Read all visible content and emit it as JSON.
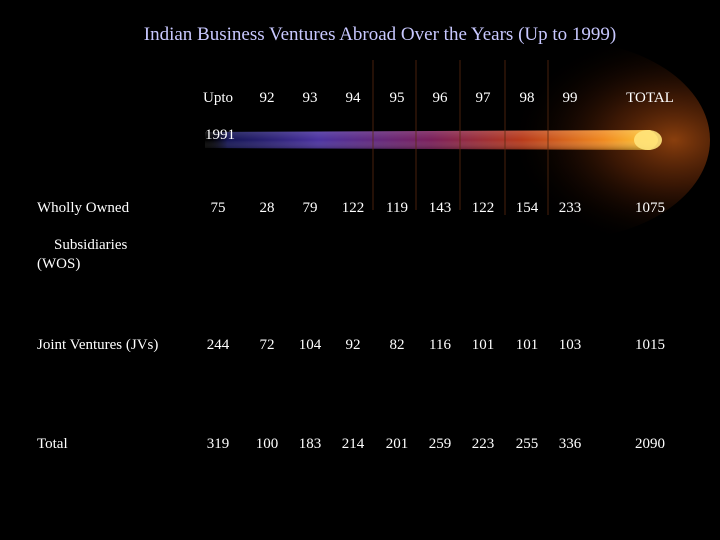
{
  "slide": {
    "title": "Indian Business Ventures Abroad Over the Years (Up to 1999)"
  },
  "table": {
    "header_first_line": "Upto",
    "header_first_line2": "1991",
    "columns": [
      "92",
      "93",
      "94",
      "95",
      "96",
      "97",
      "98",
      "99"
    ],
    "total_label": "TOTAL",
    "rows": [
      {
        "label_line1": "Wholly Owned",
        "label_line2": "Subsidiaries",
        "label_line3": "(WOS)",
        "values": [
          "75",
          "28",
          "79",
          "122",
          "119",
          "143",
          "122",
          "154",
          "233",
          "1075"
        ]
      },
      {
        "label_line1": "Joint Ventures (JVs)",
        "values": [
          "244",
          "72",
          "104",
          "92",
          "82",
          "116",
          "101",
          "101",
          "103",
          "1015"
        ]
      },
      {
        "label_line1": "Total",
        "values": [
          "319",
          "100",
          "183",
          "214",
          "201",
          "259",
          "223",
          "255",
          "336",
          "2090"
        ]
      }
    ]
  },
  "colors": {
    "background": "#000000",
    "title": "#c8c8ff",
    "text": "#ffffff",
    "comet_head": "#ffd23c",
    "comet_tail": "#4b32a0"
  }
}
